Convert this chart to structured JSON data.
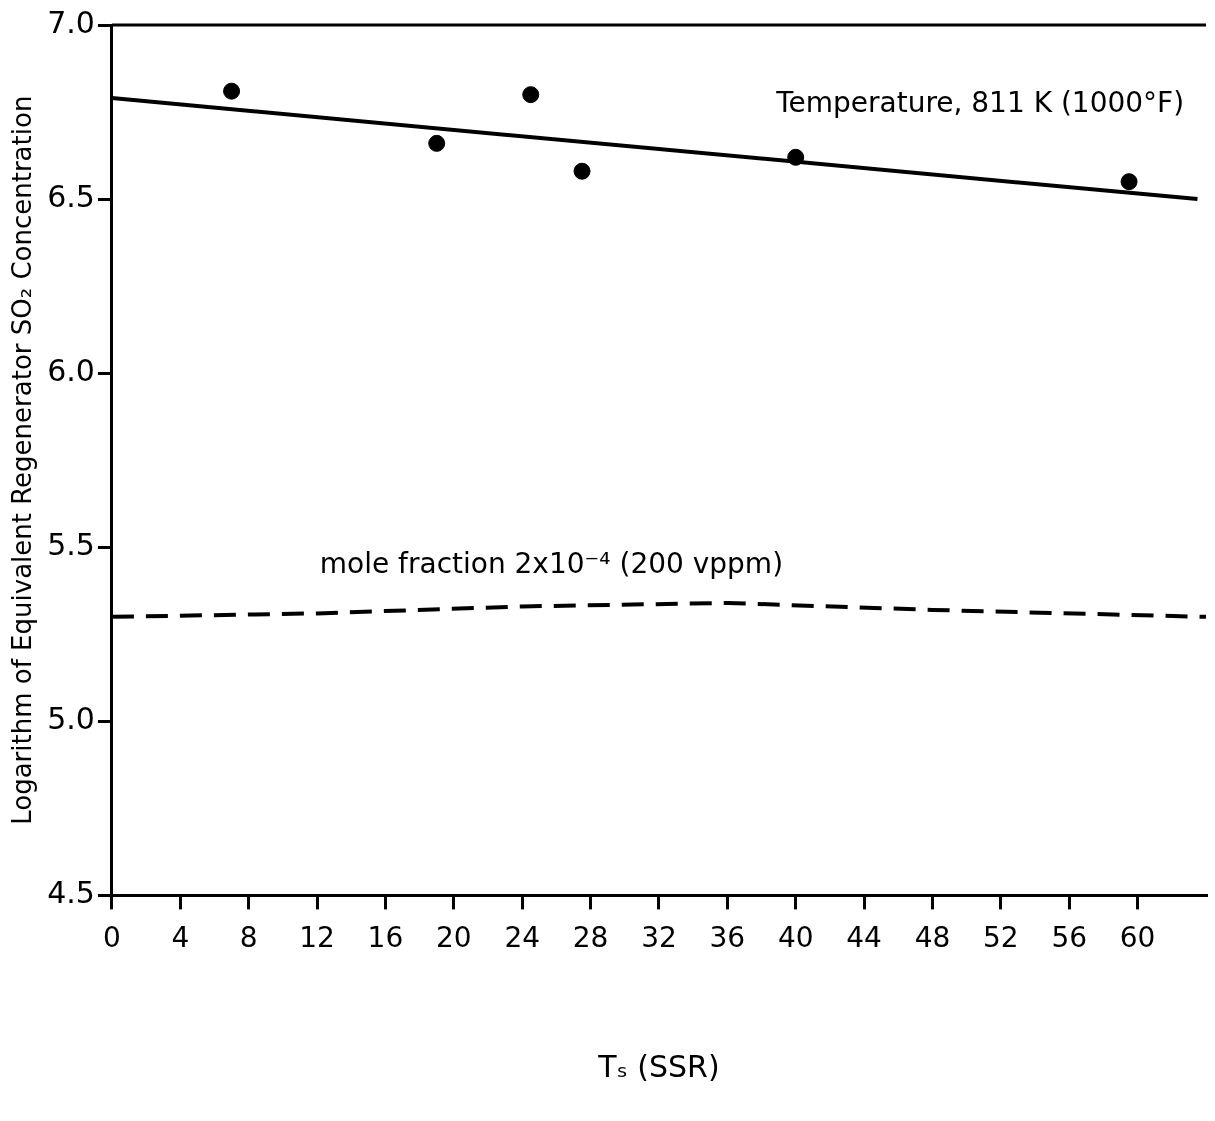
{
  "chart_data": {
    "type": "scatter",
    "xlabel": "Tₛ (SSR)",
    "ylabel": "Logarithm of Equivalent Regenerator SO₂ Concentration",
    "xlim": [
      0,
      64
    ],
    "xticks": [
      0,
      4,
      8,
      12,
      16,
      20,
      24,
      28,
      32,
      36,
      40,
      44,
      48,
      52,
      56,
      60
    ],
    "ylim": [
      4.5,
      7
    ],
    "yticks": [
      {
        "value": 4.5,
        "label": "4.5"
      },
      {
        "value": 5,
        "label": "5.0"
      },
      {
        "value": 5.5,
        "label": "5.5"
      },
      {
        "value": 6,
        "label": "6.0"
      },
      {
        "value": 6.5,
        "label": "6.5"
      },
      {
        "value": 7,
        "label": "7.0"
      }
    ],
    "grid": false,
    "legend": false,
    "series": [
      {
        "color": "#000000",
        "marker": "circle",
        "x": [
          7,
          19,
          24.5,
          27.5,
          40,
          59.5
        ],
        "values": [
          6.81,
          6.66,
          6.8,
          6.58,
          6.62,
          6.55
        ]
      },
      {
        "type": "line",
        "color": "#000000",
        "marker": "none",
        "line_style": "solid",
        "x": [
          0,
          63.5
        ],
        "values": [
          6.79,
          6.5
        ]
      },
      {
        "type": "line",
        "color": "#000000",
        "marker": "none",
        "line_style": "dashed",
        "x": [
          0,
          12,
          24,
          36,
          48,
          64
        ],
        "values": [
          5.3,
          5.31,
          5.33,
          5.34,
          5.32,
          5.3
        ]
      }
    ],
    "annotations": [
      "Temperature, 811 K (1000°F)",
      "mole fraction 2x10⁻⁴ (200 vppm)"
    ]
  }
}
